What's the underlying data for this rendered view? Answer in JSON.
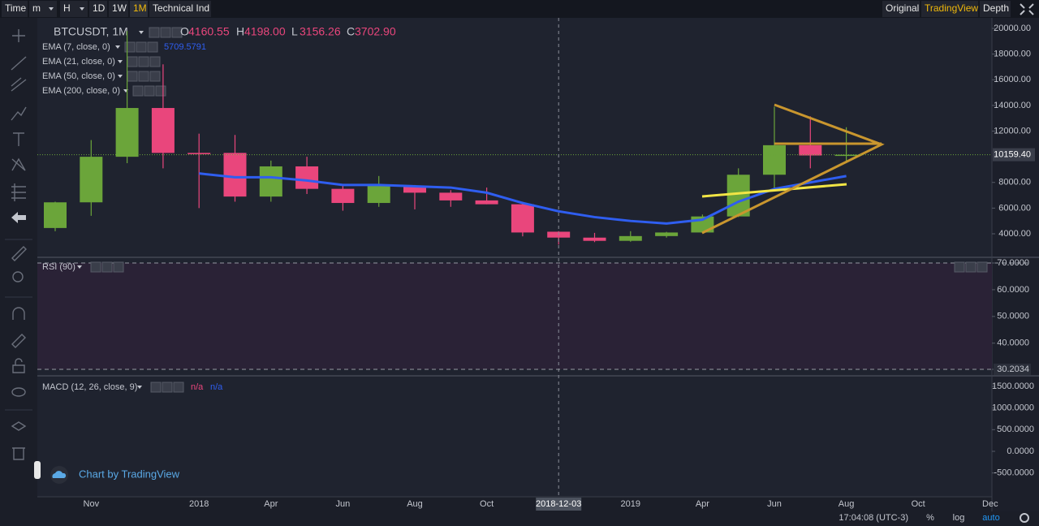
{
  "toolbar": {
    "left": [
      "Time",
      "m",
      "H",
      "1D",
      "1W",
      "1M",
      "Technical Ind"
    ],
    "active": "1M",
    "right": [
      "Original",
      "TradingView",
      "Depth"
    ],
    "right_active": "TradingView"
  },
  "legend": {
    "symbol": "BTCUSDT, 1M",
    "ohlc": [
      {
        "name": "O",
        "value": 4160.55
      },
      {
        "name": "H",
        "value": {
          "value": 4198,
          "label": "4198.00"
        }
      },
      {
        "name": "L",
        "value": 3156.26
      },
      {
        "name": "C",
        "value": {
          "value": 3702.9,
          "label": "3702.90"
        }
      }
    ]
  },
  "chart_data": {
    "type": "candlestick",
    "up_color": "#6ba53a",
    "down_color": "#e9467c",
    "candles": [
      {
        "open": 4450,
        "high": 6500,
        "low": 4200,
        "close": 6450
      },
      {
        "open": 6450,
        "high": 11300,
        "low": 5400,
        "close": 10000
      },
      {
        "open": 10000,
        "high": 19800,
        "low": 9500,
        "close": 13800
      },
      {
        "open": 13800,
        "high": 17200,
        "low": 9100,
        "close": 10300
      },
      {
        "open": 10300,
        "high": 11800,
        "low": 6000,
        "close": 10200
      },
      {
        "open": 10300,
        "high": 11700,
        "low": 6500,
        "close": 6900
      },
      {
        "open": 6900,
        "high": 9700,
        "low": 6500,
        "close": 9250
      },
      {
        "open": 9250,
        "high": 10000,
        "low": 7100,
        "close": 7500
      },
      {
        "open": 7500,
        "high": 7800,
        "low": 5800,
        "close": 6400
      },
      {
        "open": 6400,
        "high": 8500,
        "low": 6100,
        "close": 7750
      },
      {
        "open": 7750,
        "high": 7800,
        "low": 5900,
        "close": 7200
      },
      {
        "open": 7200,
        "high": 7400,
        "low": 6100,
        "close": 6600
      },
      {
        "open": 6600,
        "high": 7600,
        "low": 6300,
        "close": 6300
      },
      {
        "open": 6300,
        "high": 6500,
        "low": 3800,
        "close": 4100
      },
      {
        "open": 4160.55,
        "high": 4198,
        "low": 3156.26,
        "close": 3702.9
      },
      {
        "open": 3700,
        "high": 4070,
        "low": 3350,
        "close": 3450
      },
      {
        "open": 3450,
        "high": 4200,
        "low": 3380,
        "close": 3820
      },
      {
        "open": 3820,
        "high": 4150,
        "low": 3700,
        "close": 4100
      },
      {
        "open": 4100,
        "high": 5500,
        "low": 4050,
        "close": 5350
      },
      {
        "open": 5350,
        "high": 9100,
        "low": 5300,
        "close": 8600
      },
      {
        "open": 8600,
        "high": 13900,
        "low": 7500,
        "close": 10900
      },
      {
        "open": 10900,
        "high": 13150,
        "low": 9100,
        "close": 10100
      },
      {
        "open": 10100,
        "high": 12300,
        "low": 9500,
        "close": 10159.4
      }
    ],
    "series": [
      {
        "name": "EMA (7, close, 0)",
        "color": "#2f5ef0",
        "crosshair_value": 5709.5791,
        "values": [
          null,
          null,
          null,
          null,
          8700,
          8400,
          8400,
          8150,
          7800,
          7800,
          7700,
          7600,
          7200,
          6400,
          5750,
          5300,
          5000,
          4800,
          5100,
          6500,
          7500,
          8000,
          8500
        ]
      },
      {
        "name": "EMA (21, close, 0)"
      },
      {
        "name": "EMA (50, close, 0)"
      },
      {
        "name": "EMA (200, close, 0)"
      }
    ],
    "ylim": [
      2229,
      20822
    ],
    "yticks": [
      {
        "value": 20000,
        "label": "20000.00"
      },
      {
        "value": 18000,
        "label": "18000.00"
      },
      {
        "value": 16000,
        "label": "16000.00"
      },
      {
        "value": 14000,
        "label": "14000.00"
      },
      {
        "value": 12000,
        "label": "12000.00"
      },
      {
        "value": 8000,
        "label": "8000.00"
      },
      {
        "value": 6000,
        "label": "6000.00"
      },
      {
        "value": 4000,
        "label": "4000.00"
      }
    ],
    "last_price": {
      "value": 10159.4,
      "label": "10159.40"
    }
  },
  "rsi": {
    "name": "RSI (90)",
    "ylim": [
      28.08,
      71.82
    ],
    "yticks": [
      {
        "value": 70,
        "label": "70.0000"
      },
      {
        "value": 60,
        "label": "60.0000"
      },
      {
        "value": 50,
        "label": "50.0000"
      },
      {
        "value": 40,
        "label": "40.0000"
      },
      30.2034
    ]
  },
  "macd": {
    "name": "MACD (12, 26, close, 9)",
    "values": [
      "n/a",
      "n/a"
    ],
    "ylim": [
      -1050,
      1725
    ],
    "yticks": [
      {
        "value": 1500,
        "label": "1500.0000"
      },
      {
        "value": 1000,
        "label": "1000.0000"
      },
      {
        "value": 500,
        "label": "500.0000"
      },
      {
        "value": 0,
        "label": "0.0000"
      },
      {
        "value": -500,
        "label": "-500.0000"
      }
    ]
  },
  "time_axis": {
    "labels": [
      "Nov",
      "2018",
      "Apr",
      "Jun",
      "Aug",
      "Oct",
      "2018-12-03",
      "2019",
      "Apr",
      "Jun",
      "Aug",
      "Oct",
      "Dec"
    ]
  },
  "watermark": "Chart by TradingView",
  "status": {
    "time": "17:04:08 (UTC-3)",
    "buttons": [
      "%",
      "log",
      "auto"
    ],
    "active": "auto"
  }
}
